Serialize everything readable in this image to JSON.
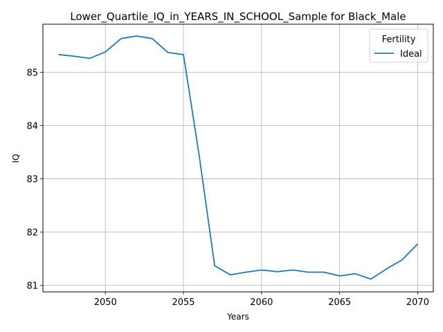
{
  "chart_data": {
    "type": "line",
    "title": "Lower_Quartile_IQ_in_YEARS_IN_SCHOOL_Sample for Black_Male",
    "xlabel": "Years",
    "ylabel": "IQ",
    "xlim": [
      2046,
      2071
    ],
    "ylim": [
      80.88,
      85.9
    ],
    "x_ticks": [
      2050,
      2055,
      2060,
      2065,
      2070
    ],
    "y_ticks": [
      81,
      82,
      83,
      84,
      85
    ],
    "grid": true,
    "legend": {
      "title": "Fertility",
      "placement": "top-right"
    },
    "series": [
      {
        "name": "Ideal",
        "color": "#1f77b4",
        "x": [
          2047,
          2048,
          2049,
          2050,
          2051,
          2052,
          2053,
          2054,
          2055,
          2056,
          2057,
          2058,
          2059,
          2060,
          2061,
          2062,
          2063,
          2064,
          2065,
          2066,
          2067,
          2068,
          2069,
          2070
        ],
        "y": [
          85.33,
          85.3,
          85.26,
          85.38,
          85.63,
          85.68,
          85.63,
          85.37,
          85.33,
          83.45,
          81.37,
          81.2,
          81.25,
          81.29,
          81.26,
          81.29,
          81.25,
          81.25,
          81.18,
          81.22,
          81.12,
          81.31,
          81.48,
          81.78
        ]
      }
    ]
  }
}
